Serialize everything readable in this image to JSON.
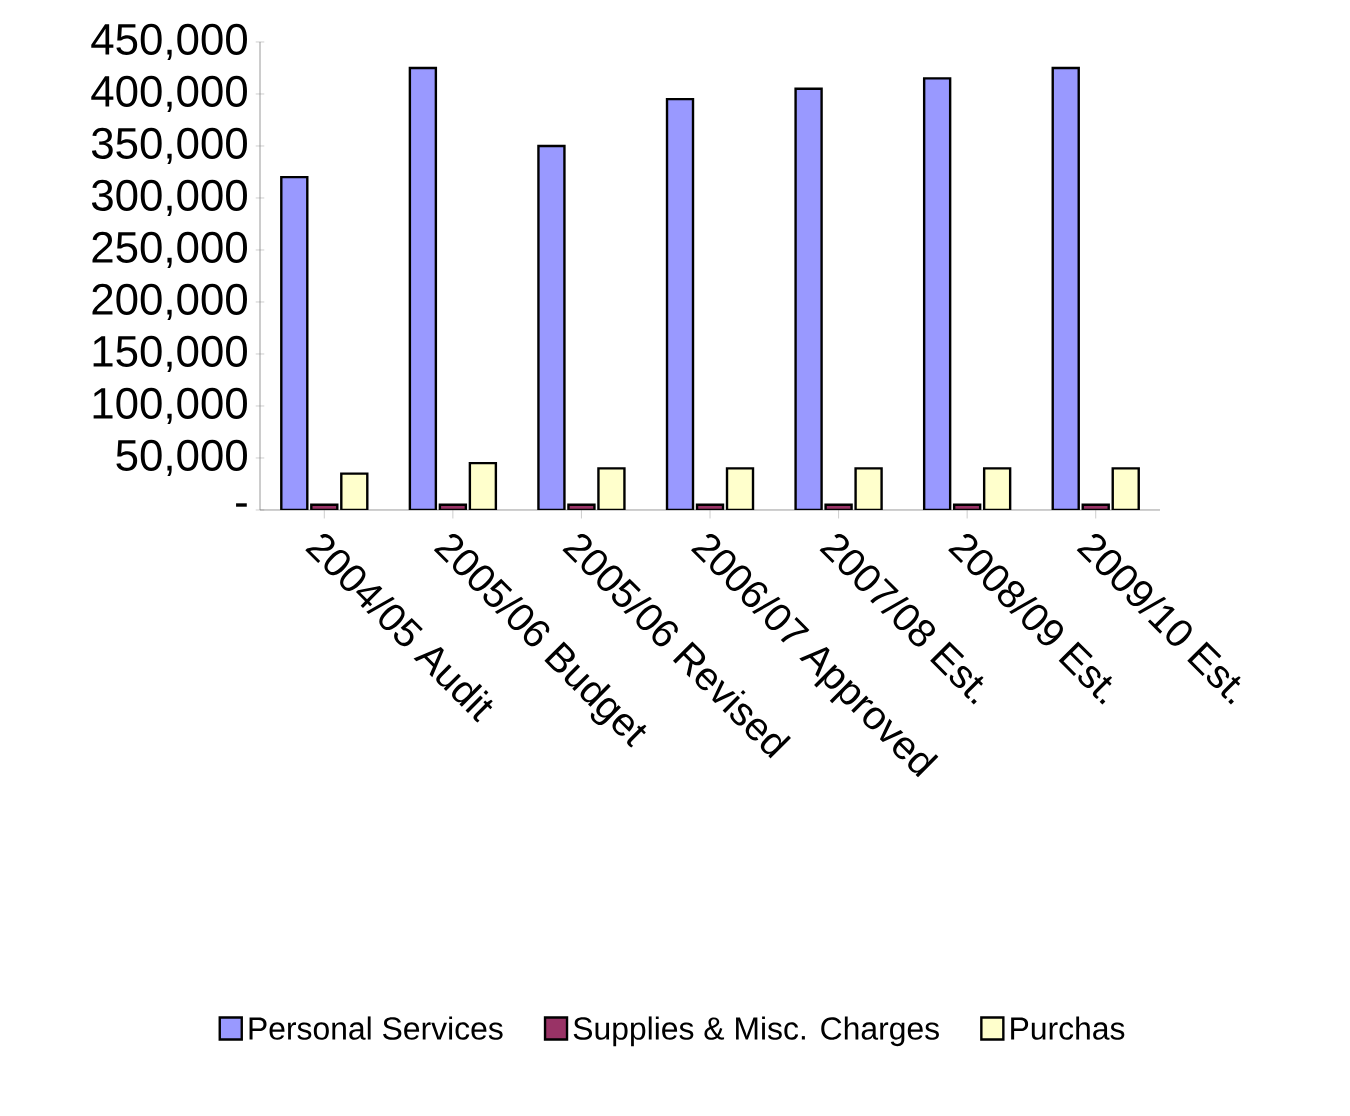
{
  "chart_data": {
    "type": "bar",
    "categories": [
      "2004/05 Audit",
      "2005/06 Budget",
      "2005/06 Revised",
      "2006/07 Approved",
      "2007/08 Est.",
      "2008/09 Est.",
      "2009/10 Est."
    ],
    "series": [
      {
        "name": "Personal Services",
        "color": "#9999ff",
        "values": [
          320000,
          425000,
          350000,
          395000,
          405000,
          415000,
          425000
        ]
      },
      {
        "name": "Supplies & Misc. Charges",
        "color": "#993366",
        "values": [
          5000,
          5000,
          5000,
          5000,
          5000,
          5000,
          5000
        ]
      },
      {
        "name": "Purchas",
        "color": "#ffffcc",
        "values": [
          35000,
          45000,
          40000,
          40000,
          40000,
          40000,
          40000
        ]
      }
    ],
    "ylim": [
      0,
      450000
    ],
    "yticks": [
      {
        "value": 0,
        "label": "-"
      },
      {
        "value": 50000,
        "label": "50,000"
      },
      {
        "value": 100000,
        "label": "100,000"
      },
      {
        "value": 150000,
        "label": "150,000"
      },
      {
        "value": 200000,
        "label": "200,000"
      },
      {
        "value": 250000,
        "label": "250,000"
      },
      {
        "value": 300000,
        "label": "300,000"
      },
      {
        "value": 350000,
        "label": "350,000"
      },
      {
        "value": 400000,
        "label": "400,000"
      },
      {
        "value": 450000,
        "label": "450,000"
      }
    ],
    "legend": "bottom",
    "grid": false
  }
}
